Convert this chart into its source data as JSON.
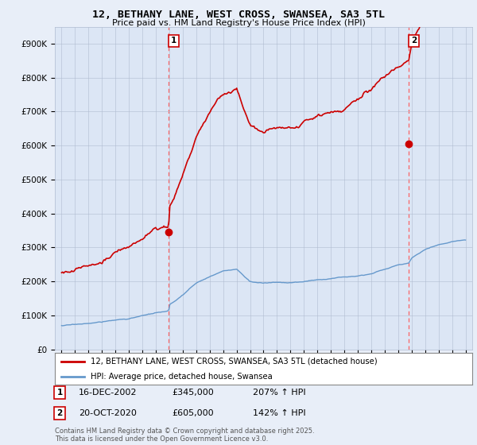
{
  "title": "12, BETHANY LANE, WEST CROSS, SWANSEA, SA3 5TL",
  "subtitle": "Price paid vs. HM Land Registry's House Price Index (HPI)",
  "background_color": "#e8eef8",
  "plot_bg_color": "#dce6f5",
  "ylim": [
    0,
    950000
  ],
  "yticks": [
    0,
    100000,
    200000,
    300000,
    400000,
    500000,
    600000,
    700000,
    800000,
    900000
  ],
  "ytick_labels": [
    "£0",
    "£100K",
    "£200K",
    "£300K",
    "£400K",
    "£500K",
    "£600K",
    "£700K",
    "£800K",
    "£900K"
  ],
  "xlim_start": 1994.5,
  "xlim_end": 2025.5,
  "xticks": [
    1995,
    1996,
    1997,
    1998,
    1999,
    2000,
    2001,
    2002,
    2003,
    2004,
    2005,
    2006,
    2007,
    2008,
    2009,
    2010,
    2011,
    2012,
    2013,
    2014,
    2015,
    2016,
    2017,
    2018,
    2019,
    2020,
    2021,
    2022,
    2023,
    2024,
    2025
  ],
  "sale1_x": 2002.96,
  "sale1_y": 345000,
  "sale2_x": 2020.79,
  "sale2_y": 605000,
  "red_color": "#cc0000",
  "blue_color": "#6699cc",
  "vline_color": "#ff5555",
  "legend_line1": "12, BETHANY LANE, WEST CROSS, SWANSEA, SA3 5TL (detached house)",
  "legend_line2": "HPI: Average price, detached house, Swansea",
  "sale1_label": "1",
  "sale2_label": "2",
  "sale1_date": "16-DEC-2002",
  "sale1_price": "£345,000",
  "sale1_hpi": "207% ↑ HPI",
  "sale2_date": "20-OCT-2020",
  "sale2_price": "£605,000",
  "sale2_hpi": "142% ↑ HPI",
  "footer": "Contains HM Land Registry data © Crown copyright and database right 2025.\nThis data is licensed under the Open Government Licence v3.0.",
  "figsize": [
    6.0,
    5.6
  ],
  "dpi": 100
}
